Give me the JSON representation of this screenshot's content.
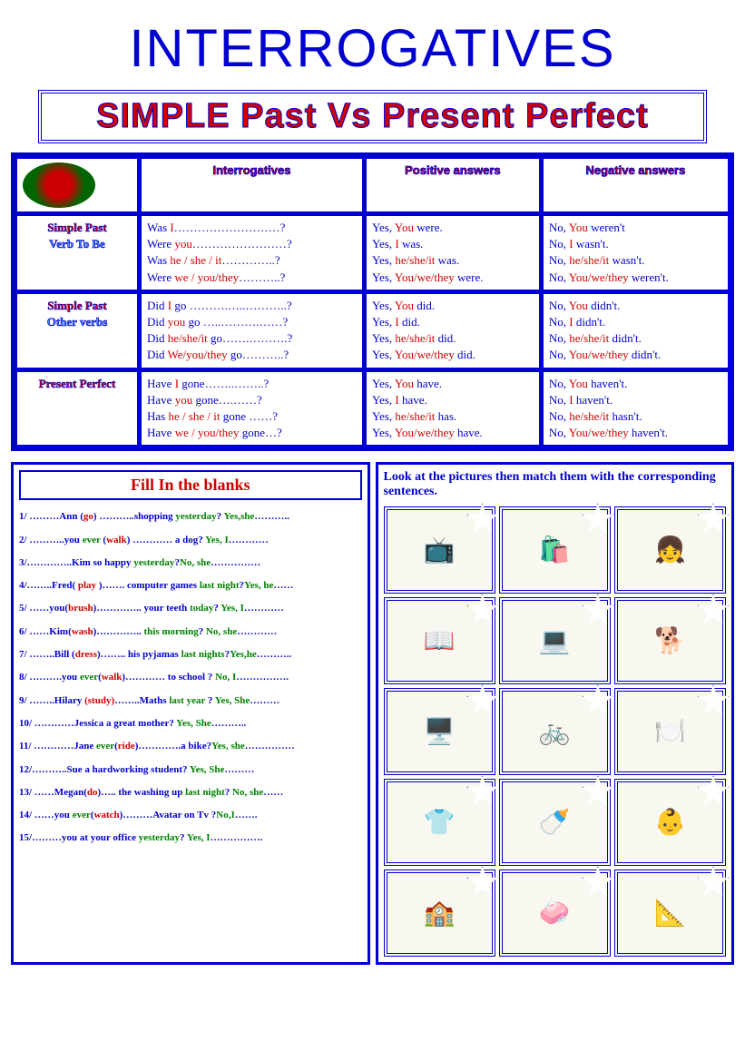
{
  "title": "INTERROGATIVES",
  "subtitle": "SIMPLE Past Vs Present Perfect",
  "headers": {
    "c1": "Interrogatives",
    "c2": "Positive answers",
    "c3": "Negative answers"
  },
  "rows": [
    {
      "l1": "Simple Past",
      "l2": "Verb To Be",
      "int": [
        [
          "Was  ",
          "I",
          "………………………?"
        ],
        [
          "Were ",
          "you",
          "……………………?"
        ],
        [
          "Was   ",
          "he / she / it",
          "…………..?"
        ],
        [
          "Were  ",
          "we / you/they",
          "………..?"
        ]
      ],
      "pos": [
        [
          "Yes, ",
          "You",
          " were."
        ],
        [
          "Yes, ",
          "I",
          "  was."
        ],
        [
          "Yes, ",
          "he/she/it",
          " was."
        ],
        [
          "Yes, ",
          "You/we/they",
          " were."
        ]
      ],
      "neg": [
        [
          "No, ",
          "You",
          " weren't"
        ],
        [
          "No, ",
          "I",
          " wasn't."
        ],
        [
          "No, ",
          "he/she/it",
          " wasn't."
        ],
        [
          "No, ",
          "You/we/they",
          " weren't."
        ]
      ]
    },
    {
      "l1": "Simple Past",
      "l2": "Other verbs",
      "int": [
        [
          "Did ",
          "I",
          " go ……….…..………..?"
        ],
        [
          "Did  ",
          "you",
          " go …..……….……?"
        ],
        [
          "Did  ",
          "he/she/it",
          " go…….……….?"
        ],
        [
          "Did  ",
          "We/you/they",
          " go………..?"
        ]
      ],
      "pos": [
        [
          "Yes, ",
          "You",
          " did."
        ],
        [
          "Yes, ",
          "I",
          "  did."
        ],
        [
          "Yes, ",
          "he/she/it",
          " did."
        ],
        [
          "Yes, ",
          "You/we/they",
          " did."
        ]
      ],
      "neg": [
        [
          "No, ",
          "You",
          " didn't."
        ],
        [
          "No, ",
          "I",
          " didn't."
        ],
        [
          "No, ",
          "he/she/it",
          "  didn't."
        ],
        [
          "No, ",
          "You/we/they",
          "  didn't."
        ]
      ]
    },
    {
      "l1": "Present Perfect",
      "l2": "",
      "int": [
        [
          "Have ",
          "I",
          " gone……..……..?"
        ],
        [
          "Have ",
          "you",
          " gone….……?"
        ],
        [
          "Has  ",
          "he / she / it",
          " gone ……?"
        ],
        [
          "Have ",
          "we / you/they",
          " gone…?"
        ]
      ],
      "pos": [
        [
          "Yes, ",
          "You",
          " have."
        ],
        [
          "Yes, ",
          "I",
          " have."
        ],
        [
          "Yes, ",
          "he/she/it",
          " has."
        ],
        [
          "Yes, ",
          "You/we/they",
          " have."
        ]
      ],
      "neg": [
        [
          "No, ",
          "You",
          " haven't."
        ],
        [
          "No, ",
          "I",
          " haven't."
        ],
        [
          "No, ",
          "he/she/it",
          " hasn't."
        ],
        [
          "No, ",
          "You/we/they",
          " haven't."
        ]
      ]
    }
  ],
  "fill_title": "Fill In the blanks",
  "questions": [
    [
      [
        "b",
        "1/ ………Ann ("
      ],
      [
        "r",
        "go"
      ],
      [
        "b",
        ") ………..shopping "
      ],
      [
        "g",
        "yesterday"
      ],
      [
        "b",
        "? "
      ],
      [
        "g",
        "Yes,she"
      ],
      [
        "b",
        "……….."
      ]
    ],
    [
      [
        "b",
        "2/ ………..you "
      ],
      [
        "g",
        "ever"
      ],
      [
        "b",
        " ("
      ],
      [
        "r",
        "walk"
      ],
      [
        "b",
        ") …………  a  dog? "
      ],
      [
        "g",
        "Yes, I"
      ],
      [
        "b",
        "…………"
      ]
    ],
    [
      [
        "b",
        "3/…………..Kim  so happy "
      ],
      [
        "g",
        "yesterday"
      ],
      [
        "b",
        "?"
      ],
      [
        "g",
        "No, she"
      ],
      [
        "b",
        "……………"
      ]
    ],
    [
      [
        "b",
        "4/……..Fred( "
      ],
      [
        "r",
        "play "
      ],
      [
        "b",
        ")……. computer games "
      ],
      [
        "g",
        "last night"
      ],
      [
        "b",
        "?"
      ],
      [
        "g",
        "Yes, he"
      ],
      [
        "b",
        "……"
      ]
    ],
    [
      [
        "b",
        "5/ ……you("
      ],
      [
        "r",
        "brush"
      ],
      [
        "b",
        ")………….. your teeth  "
      ],
      [
        "g",
        "today"
      ],
      [
        "b",
        "? "
      ],
      [
        "g",
        "Yes, I"
      ],
      [
        "b",
        "…………"
      ]
    ],
    [
      [
        "b",
        "6/ ……Kim("
      ],
      [
        "r",
        "wash"
      ],
      [
        "b",
        ")………….. "
      ],
      [
        "g",
        "this morning"
      ],
      [
        "b",
        "? "
      ],
      [
        "g",
        "No, she"
      ],
      [
        "b",
        "…………"
      ]
    ],
    [
      [
        "b",
        "7/ ……..Bill ("
      ],
      [
        "r",
        "dress"
      ],
      [
        "b",
        ")…….. his pyjamas "
      ],
      [
        "g",
        "last nights"
      ],
      [
        "b",
        "?"
      ],
      [
        "g",
        "Yes,he"
      ],
      [
        "b",
        "……….."
      ]
    ],
    [
      [
        "b",
        "8/ ……….you "
      ],
      [
        "g",
        "ever"
      ],
      [
        "b",
        "("
      ],
      [
        "r",
        "walk"
      ],
      [
        "b",
        ")………… to school  ? "
      ],
      [
        "g",
        "No, I"
      ],
      [
        "b",
        "……………."
      ]
    ],
    [
      [
        "b",
        "9/ ……..Hilary "
      ],
      [
        "r",
        "(study)"
      ],
      [
        "b",
        "……..Maths "
      ],
      [
        "g",
        "last year "
      ],
      [
        "b",
        "? "
      ],
      [
        "g",
        "Yes, She"
      ],
      [
        "b",
        "………"
      ]
    ],
    [
      [
        "b",
        "10/ …………Jessica a great mother? "
      ],
      [
        "g",
        "Yes, She"
      ],
      [
        "b",
        "……….."
      ]
    ],
    [
      [
        "b",
        "11/ …………Jane  "
      ],
      [
        "g",
        "ever"
      ],
      [
        "b",
        "("
      ],
      [
        "r",
        "ride"
      ],
      [
        "b",
        ")………….a bike?"
      ],
      [
        "g",
        "Yes, she"
      ],
      [
        "b",
        "……………"
      ]
    ],
    [
      [
        "b",
        "12/………..Sue a hardworking student? "
      ],
      [
        "g",
        "Yes, She"
      ],
      [
        "b",
        "………"
      ]
    ],
    [
      [
        "b",
        "13/ ……Megan("
      ],
      [
        "r",
        "do"
      ],
      [
        "b",
        ")….. the washing up "
      ],
      [
        "g",
        "last night"
      ],
      [
        "b",
        "? "
      ],
      [
        "g",
        "No, she"
      ],
      [
        "b",
        "……"
      ]
    ],
    [
      [
        "b",
        "14/ ……you "
      ],
      [
        "g",
        "ever"
      ],
      [
        "b",
        "("
      ],
      [
        "r",
        "watch"
      ],
      [
        "b",
        ")………Avatar on Tv ?"
      ],
      [
        "g",
        "No,I"
      ],
      [
        "b",
        "……."
      ]
    ],
    [
      [
        "b",
        "15/………you at your office "
      ],
      [
        "g",
        "yesterday"
      ],
      [
        "b",
        "? "
      ],
      [
        "g",
        "Yes, I"
      ],
      [
        "b",
        "……………."
      ]
    ]
  ],
  "pic_instr": "Look at the pictures then match them with the corresponding sentences.",
  "pics": [
    "📺",
    "🛍️",
    "👧",
    "📖",
    "💻",
    "🐕",
    "🖥️",
    "🚲",
    "🍽️",
    "👕",
    "🍼",
    "👶",
    "🏫",
    "🧼",
    "📐"
  ]
}
